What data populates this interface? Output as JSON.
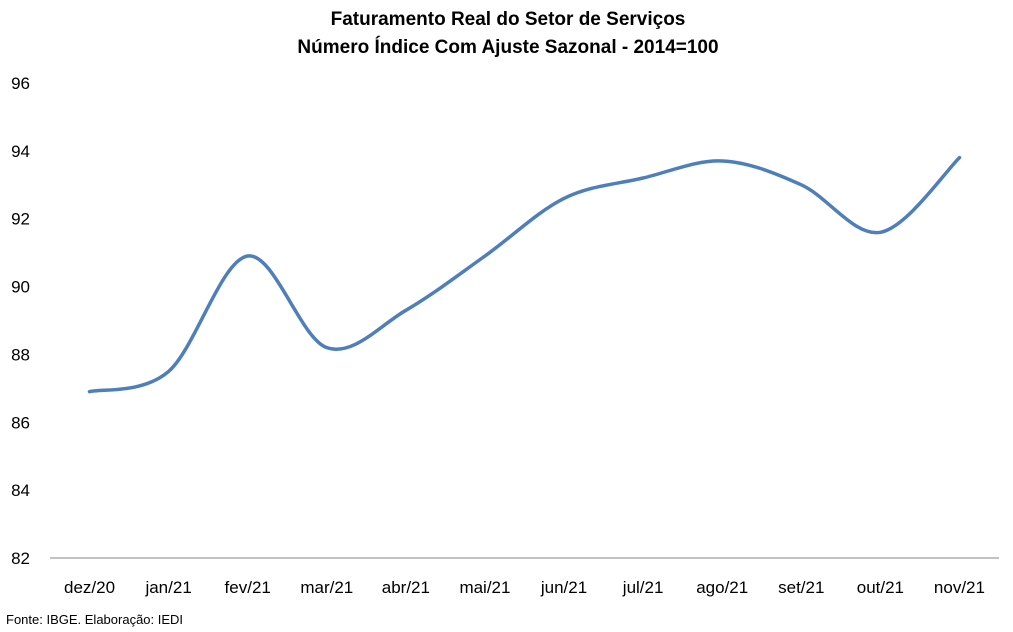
{
  "chart_data": {
    "type": "line",
    "title": "Faturamento Real do Setor de Serviços",
    "subtitle": "Número Índice Com Ajuste Sazonal - 2014=100",
    "xlabel": "",
    "ylabel": "",
    "categories": [
      "dez/20",
      "jan/21",
      "fev/21",
      "mar/21",
      "abr/21",
      "mai/21",
      "jun/21",
      "jul/21",
      "ago/21",
      "set/21",
      "out/21",
      "nov/21"
    ],
    "series": [
      {
        "values": [
          86.9,
          87.5,
          90.9,
          88.2,
          89.3,
          90.9,
          92.6,
          93.2,
          93.7,
          93.0,
          91.6,
          93.8
        ],
        "color": "#4f7fba",
        "smooth": true
      }
    ],
    "ylim": [
      82,
      96
    ],
    "yticks": [
      82,
      84,
      86,
      88,
      90,
      92,
      94,
      96
    ],
    "grid": false,
    "legend": "none"
  },
  "footer": {
    "source": "Fonte: IBGE. Elaboração: IEDI"
  }
}
